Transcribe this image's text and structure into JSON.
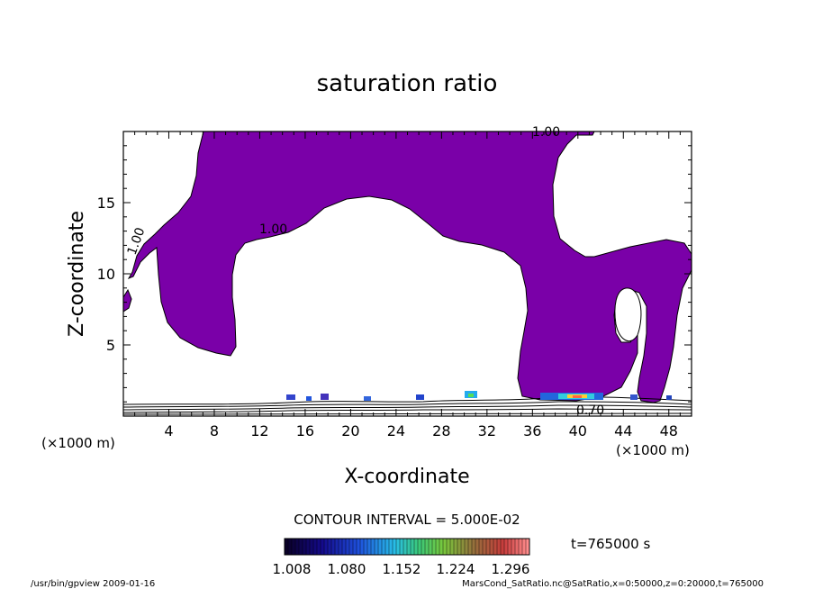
{
  "chart_data": {
    "type": "heatmap",
    "title": "saturation ratio",
    "xlabel": "X-coordinate",
    "ylabel": "Z-coordinate",
    "x_unit": "(×1000 m)",
    "z_unit": "(×1000 m)",
    "xlim": [
      0,
      50
    ],
    "ylim": [
      0,
      20
    ],
    "x_ticks": [
      "4",
      "8",
      "12",
      "16",
      "20",
      "24",
      "28",
      "32",
      "36",
      "40",
      "44",
      "48"
    ],
    "y_ticks": [
      "5",
      "10",
      "15"
    ],
    "contour_labels": [
      "1.00",
      "1.00",
      "1.00",
      "0.70"
    ],
    "contour_interval": "CONTOUR INTERVAL = 5.000E-02",
    "time_label": "t=765000 s",
    "colorbar_labels": [
      "1.008",
      "1.080",
      "1.152",
      "1.224",
      "1.296"
    ],
    "colorbar_range": [
      1.0,
      1.3
    ],
    "fill_color": "#7a00a8",
    "grid": false
  },
  "footer": {
    "left": "/usr/bin/gpview  2009-01-16",
    "right": "MarsCond_SatRatio.nc@SatRatio,x=0:50000,z=0:20000,t=765000"
  }
}
